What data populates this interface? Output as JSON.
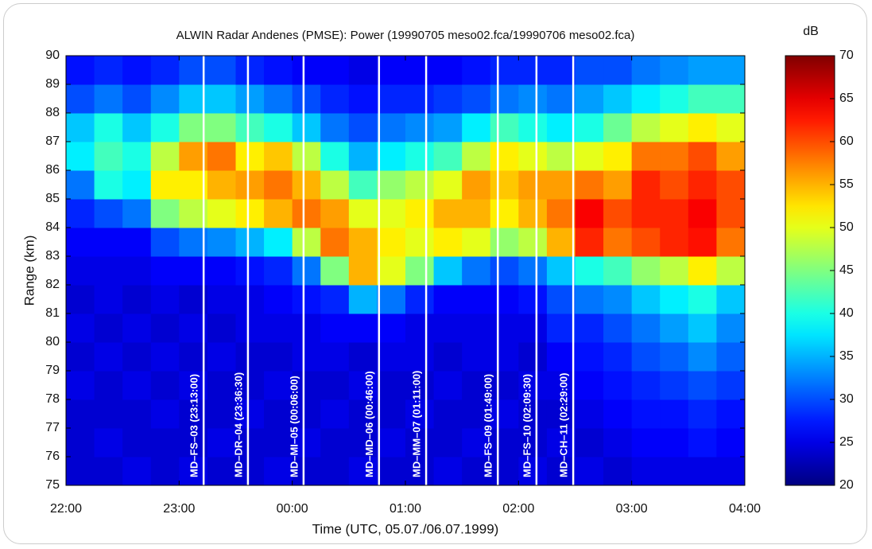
{
  "chart_data": {
    "type": "heatmap",
    "title": "ALWIN Radar Andenes (PMSE): Power (19990705 meso02.fca/19990706 meso02.fca)",
    "xlabel": "Time (UTC, 05.07./06.07.1999)",
    "ylabel": "Range (km)",
    "colorbar_label": "dB",
    "colormap": "jet",
    "clim": [
      20,
      70
    ],
    "cticks": [
      20,
      25,
      30,
      35,
      40,
      45,
      50,
      55,
      60,
      65,
      70
    ],
    "xlim": [
      22,
      28
    ],
    "xticks": [
      {
        "value": 22,
        "label": "22:00"
      },
      {
        "value": 23,
        "label": "23:00"
      },
      {
        "value": 24,
        "label": "00:00"
      },
      {
        "value": 25,
        "label": "01:00"
      },
      {
        "value": 26,
        "label": "02:00"
      },
      {
        "value": 27,
        "label": "03:00"
      },
      {
        "value": 28,
        "label": "04:00"
      }
    ],
    "ylim": [
      75,
      90
    ],
    "yticks": [
      75,
      76,
      77,
      78,
      79,
      80,
      81,
      82,
      83,
      84,
      85,
      86,
      87,
      88,
      89,
      90
    ],
    "grid": false,
    "xbins": [
      22,
      22.25,
      22.5,
      22.75,
      23,
      23.25,
      23.5,
      23.75,
      24,
      24.25,
      24.5,
      24.75,
      25,
      25.25,
      25.5,
      25.75,
      26,
      26.25,
      26.5,
      26.75,
      27,
      27.25,
      27.5,
      27.75,
      28
    ],
    "ybins": [
      75,
      76,
      77,
      78,
      79,
      80,
      81,
      82,
      83,
      84,
      85,
      86,
      87,
      88,
      89,
      90
    ],
    "z": [
      [
        24,
        24,
        25,
        24,
        25,
        24,
        24,
        25,
        24,
        24,
        25,
        24,
        24,
        25,
        24,
        24,
        25,
        24,
        25,
        24,
        25,
        25,
        25,
        25
      ],
      [
        24,
        25,
        24,
        24,
        24,
        25,
        24,
        24,
        25,
        24,
        24,
        25,
        24,
        24,
        25,
        24,
        24,
        25,
        24,
        25,
        26,
        26,
        27,
        26
      ],
      [
        24,
        24,
        24,
        25,
        24,
        24,
        25,
        24,
        24,
        25,
        24,
        24,
        25,
        24,
        24,
        25,
        24,
        24,
        25,
        26,
        27,
        27,
        28,
        27
      ],
      [
        25,
        24,
        25,
        24,
        25,
        24,
        24,
        25,
        24,
        24,
        25,
        24,
        24,
        25,
        24,
        24,
        25,
        25,
        26,
        27,
        28,
        29,
        30,
        29
      ],
      [
        24,
        25,
        24,
        25,
        24,
        25,
        24,
        24,
        25,
        25,
        24,
        25,
        25,
        24,
        25,
        25,
        24,
        26,
        27,
        28,
        30,
        31,
        33,
        31
      ],
      [
        25,
        24,
        25,
        24,
        25,
        24,
        25,
        25,
        25,
        26,
        26,
        26,
        25,
        25,
        25,
        25,
        25,
        28,
        28,
        30,
        32,
        34,
        36,
        33
      ],
      [
        24,
        25,
        24,
        25,
        24,
        25,
        25,
        26,
        27,
        28,
        35,
        32,
        28,
        26,
        26,
        26,
        27,
        30,
        32,
        33,
        36,
        38,
        40,
        36
      ],
      [
        25,
        25,
        25,
        26,
        26,
        26,
        27,
        28,
        32,
        45,
        55,
        50,
        45,
        36,
        32,
        30,
        32,
        36,
        40,
        42,
        46,
        48,
        52,
        48
      ],
      [
        26,
        26,
        26,
        30,
        32,
        33,
        35,
        38,
        48,
        58,
        55,
        52,
        50,
        52,
        50,
        46,
        48,
        55,
        62,
        58,
        60,
        62,
        63,
        58
      ],
      [
        28,
        30,
        32,
        45,
        48,
        50,
        52,
        55,
        58,
        56,
        50,
        50,
        52,
        55,
        55,
        52,
        55,
        58,
        64,
        60,
        62,
        62,
        64,
        60
      ],
      [
        32,
        40,
        38,
        52,
        52,
        55,
        56,
        58,
        55,
        48,
        42,
        46,
        48,
        50,
        56,
        54,
        56,
        56,
        58,
        56,
        62,
        60,
        62,
        60
      ],
      [
        38,
        42,
        40,
        48,
        56,
        58,
        52,
        54,
        48,
        40,
        35,
        38,
        40,
        42,
        48,
        52,
        50,
        48,
        50,
        52,
        58,
        58,
        60,
        56
      ],
      [
        36,
        40,
        36,
        40,
        45,
        45,
        42,
        40,
        36,
        32,
        30,
        32,
        33,
        34,
        38,
        42,
        40,
        38,
        40,
        44,
        48,
        50,
        52,
        50
      ],
      [
        30,
        32,
        30,
        33,
        36,
        36,
        34,
        32,
        30,
        28,
        27,
        28,
        28,
        29,
        30,
        32,
        33,
        32,
        34,
        36,
        38,
        40,
        42,
        42
      ],
      [
        27,
        28,
        27,
        28,
        30,
        30,
        28,
        27,
        26,
        26,
        25,
        26,
        26,
        26,
        27,
        28,
        28,
        28,
        30,
        30,
        32,
        33,
        34,
        34
      ]
    ],
    "markers": [
      {
        "x": 23.2167,
        "label": "MD–FS–03 (23:13:00)"
      },
      {
        "x": 23.6083,
        "label": "MD–DR–04 (23:36:30)"
      },
      {
        "x": 24.1,
        "label": "MD–MI–05 (00:06:00)"
      },
      {
        "x": 24.7667,
        "label": "MD–MD–06 (00:46:00)"
      },
      {
        "x": 25.1833,
        "label": "MD–MM–07 (01:11:00)"
      },
      {
        "x": 25.8167,
        "label": "MD–FS–09 (01:49:00)"
      },
      {
        "x": 26.1583,
        "label": "MD–FS–10 (02:09:30)"
      },
      {
        "x": 26.4833,
        "label": "MD–CH–11 (02:29:00)"
      }
    ]
  }
}
